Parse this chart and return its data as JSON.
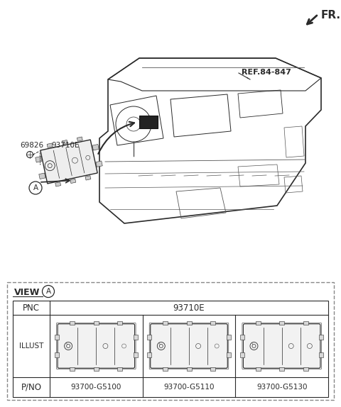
{
  "bg_color": "#ffffff",
  "fr_label": "FR.",
  "ref_label": "REF.84-847",
  "part_69826": "69826",
  "part_93710E": "93710E",
  "view_label": "VIEW",
  "view_circle": "A",
  "pnc_label": "PNC",
  "pnc_value": "93710E",
  "illust_label": "ILLUST",
  "pno_label": "P/NO",
  "pno_values": [
    "93700-G5100",
    "93700-G5110",
    "93700-G5130"
  ],
  "lc": "#2a2a2a",
  "lc_thin": "#555555",
  "bg": "#ffffff",
  "dash_color": "#888888",
  "table_bg": "#ffffff"
}
